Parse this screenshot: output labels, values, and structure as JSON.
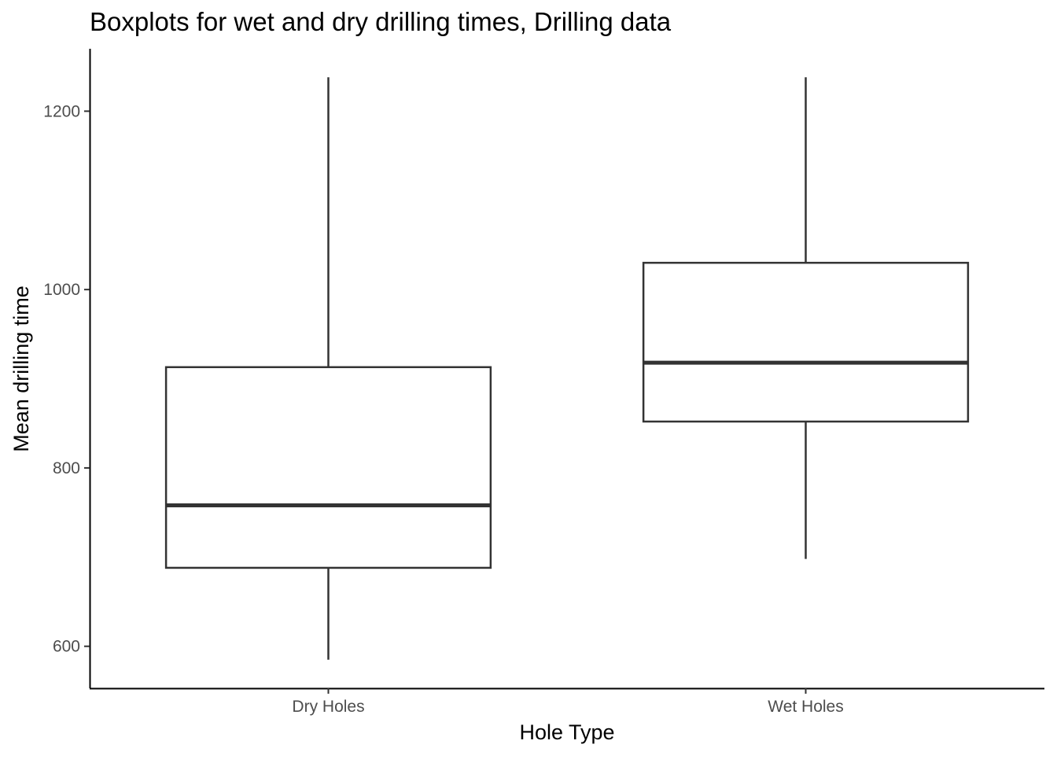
{
  "chart_data": {
    "type": "boxplot",
    "title": "Boxplots for wet and dry drilling times, Drilling data",
    "xlabel": "Hole Type",
    "ylabel": "Mean drilling time",
    "ylim": [
      553,
      1270
    ],
    "yticks": [
      600,
      800,
      1000,
      1200
    ],
    "grid": false,
    "categories": [
      "Dry Holes",
      "Wet Holes"
    ],
    "boxes": [
      {
        "name": "Dry Holes",
        "min": 585,
        "q1": 688,
        "median": 758,
        "q3": 913,
        "max": 1238
      },
      {
        "name": "Wet Holes",
        "min": 698,
        "q1": 852,
        "median": 918,
        "q3": 1030,
        "max": 1238
      }
    ],
    "colors": {
      "line": "#333333",
      "axis": "#000000",
      "tick_text": "#4d4d4d",
      "box_fill": "#ffffff"
    }
  }
}
